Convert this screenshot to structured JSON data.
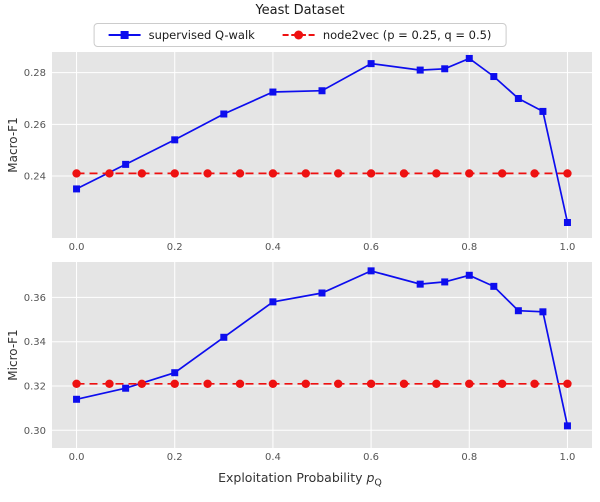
{
  "title": "Yeast Dataset",
  "legend": {
    "items": [
      {
        "label": "supervised Q-walk",
        "color": "#0d0dee",
        "marker": "square",
        "line": "solid"
      },
      {
        "label": "node2vec (p = 0.25, q = 0.5)",
        "color": "#ee1111",
        "marker": "circle",
        "line": "dashed"
      }
    ]
  },
  "xlabel": {
    "text": "Exploitation Probability ",
    "math": "p",
    "sub": "Q"
  },
  "style": {
    "plot_bg": "#e5e5e5",
    "grid_color": "#ffffff",
    "tick_color": "#555555",
    "label_color": "#333333",
    "legend_border": "#cccccc",
    "blue": "#0d0dee",
    "red": "#ee1111"
  },
  "chart_data": [
    {
      "type": "line",
      "title": "Yeast Dataset",
      "ylabel": "Macro-F1",
      "xlim": [
        -0.05,
        1.05
      ],
      "ylim": [
        0.216,
        0.288
      ],
      "x_ticks": [
        0.0,
        0.2,
        0.4,
        0.6,
        0.8,
        1.0
      ],
      "x_tick_labels": [
        "0.0",
        "0.2",
        "0.4",
        "0.6",
        "0.8",
        "1.0"
      ],
      "y_ticks": [
        0.24,
        0.26,
        0.28
      ],
      "y_tick_labels": [
        "0.24",
        "0.26",
        "0.28"
      ],
      "grid": true,
      "legend_position": "top-outside",
      "series": [
        {
          "name": "supervised Q-walk",
          "color": "#0d0dee",
          "marker": "square",
          "line": "solid",
          "x": [
            0.0,
            0.1,
            0.2,
            0.3,
            0.4,
            0.5,
            0.6,
            0.7,
            0.75,
            0.8,
            0.85,
            0.9,
            0.95,
            1.0
          ],
          "y": [
            0.235,
            0.2445,
            0.254,
            0.264,
            0.2725,
            0.273,
            0.2835,
            0.281,
            0.2815,
            0.2855,
            0.2785,
            0.27,
            0.265,
            0.222
          ]
        },
        {
          "name": "node2vec (p = 0.25, q = 0.5)",
          "color": "#ee1111",
          "marker": "circle",
          "line": "dashed",
          "x": [
            0.0,
            0.067,
            0.133,
            0.2,
            0.267,
            0.333,
            0.4,
            0.467,
            0.533,
            0.6,
            0.667,
            0.733,
            0.8,
            0.867,
            0.933,
            1.0
          ],
          "y": [
            0.241,
            0.241,
            0.241,
            0.241,
            0.241,
            0.241,
            0.241,
            0.241,
            0.241,
            0.241,
            0.241,
            0.241,
            0.241,
            0.241,
            0.241,
            0.241
          ]
        }
      ]
    },
    {
      "type": "line",
      "ylabel": "Micro-F1",
      "xlim": [
        -0.05,
        1.05
      ],
      "ylim": [
        0.292,
        0.376
      ],
      "x_ticks": [
        0.0,
        0.2,
        0.4,
        0.6,
        0.8,
        1.0
      ],
      "x_tick_labels": [
        "0.0",
        "0.2",
        "0.4",
        "0.6",
        "0.8",
        "1.0"
      ],
      "y_ticks": [
        0.3,
        0.32,
        0.34,
        0.36
      ],
      "y_tick_labels": [
        "0.30",
        "0.32",
        "0.34",
        "0.36"
      ],
      "grid": true,
      "series": [
        {
          "name": "supervised Q-walk",
          "color": "#0d0dee",
          "marker": "square",
          "line": "solid",
          "x": [
            0.0,
            0.1,
            0.2,
            0.3,
            0.4,
            0.5,
            0.6,
            0.7,
            0.75,
            0.8,
            0.85,
            0.9,
            0.95,
            1.0
          ],
          "y": [
            0.314,
            0.319,
            0.326,
            0.342,
            0.358,
            0.362,
            0.372,
            0.366,
            0.367,
            0.37,
            0.365,
            0.354,
            0.3535,
            0.302
          ]
        },
        {
          "name": "node2vec (p = 0.25, q = 0.5)",
          "color": "#ee1111",
          "marker": "circle",
          "line": "dashed",
          "x": [
            0.0,
            0.067,
            0.133,
            0.2,
            0.267,
            0.333,
            0.4,
            0.467,
            0.533,
            0.6,
            0.667,
            0.733,
            0.8,
            0.867,
            0.933,
            1.0
          ],
          "y": [
            0.321,
            0.321,
            0.321,
            0.321,
            0.321,
            0.321,
            0.321,
            0.321,
            0.321,
            0.321,
            0.321,
            0.321,
            0.321,
            0.321,
            0.321,
            0.321
          ]
        }
      ]
    }
  ]
}
